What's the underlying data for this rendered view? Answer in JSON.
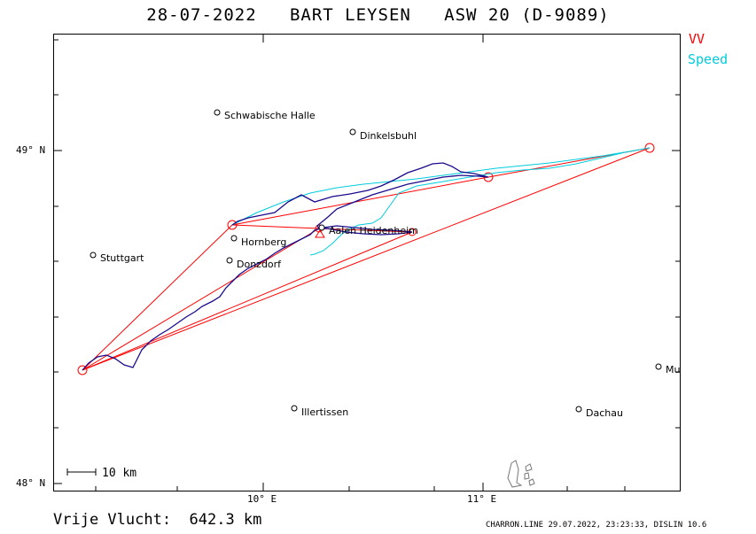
{
  "title": "28-07-2022   BART LEYSEN   ASW 20 (D-9089)",
  "legend": {
    "vv": "VV",
    "speed": "Speed",
    "vv_color": "#ff0000",
    "speed_color": "#00ccdd",
    "track_color": "#1a0a8c"
  },
  "axes": {
    "lat_labels": [
      "49° N",
      "48° N"
    ],
    "lon_labels": [
      "10° E",
      "11° E"
    ]
  },
  "cities": [
    {
      "name": "Schwabische Halle"
    },
    {
      "name": "Dinkelsbuhl"
    },
    {
      "name": "Stuttgart"
    },
    {
      "name": "Hornberg"
    },
    {
      "name": "Donzdorf"
    },
    {
      "name": "Aalen Heidenheim"
    },
    {
      "name": "Illertissen"
    },
    {
      "name": "Dachau"
    },
    {
      "name": "Mu"
    }
  ],
  "scale": {
    "label": "10  km"
  },
  "distance": "Vrije Vlucht:  642.3 km",
  "footer": "CHARRON.LINE 29.07.2022, 23:23:33, DISLIN 10.6"
}
